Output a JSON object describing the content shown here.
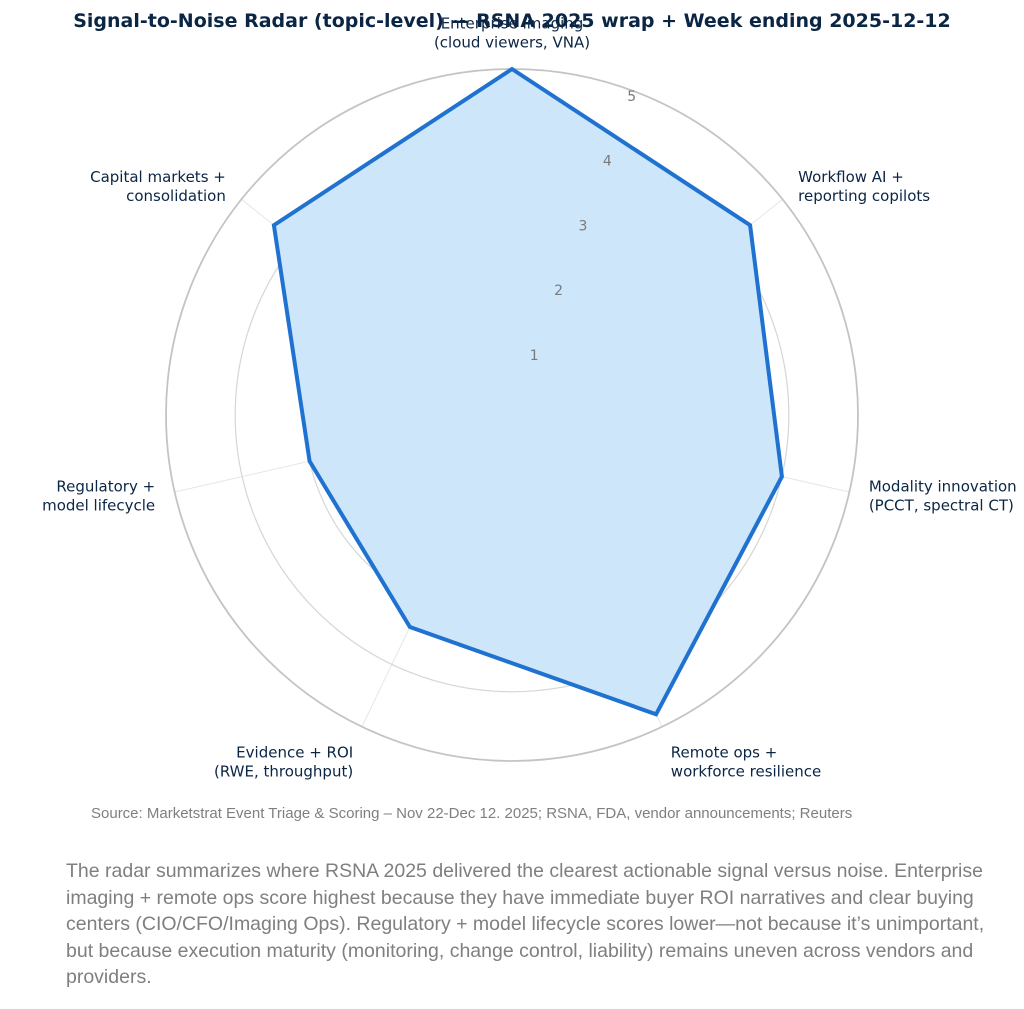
{
  "chart_data": {
    "type": "radar",
    "title": "Signal-to-Noise Radar (topic-level) — RSNA 2025 wrap + Week ending 2025-12-12",
    "axes": [
      {
        "label_lines": [
          "Enterprise imaging",
          "(cloud viewers, VNA)"
        ],
        "value": 5.0
      },
      {
        "label_lines": [
          "Workflow AI +",
          "reporting copilots"
        ],
        "value": 4.4
      },
      {
        "label_lines": [
          "Modality innovation",
          "(PCCT, spectral CT)"
        ],
        "value": 4.0
      },
      {
        "label_lines": [
          "Remote ops +",
          "workforce resilience"
        ],
        "value": 4.8
      },
      {
        "label_lines": [
          "Evidence + ROI",
          "(RWE, throughput)"
        ],
        "value": 3.4
      },
      {
        "label_lines": [
          "Regulatory +",
          "model lifecycle"
        ],
        "value": 3.0
      },
      {
        "label_lines": [
          "Capital markets +",
          "consolidation"
        ],
        "value": 4.4
      }
    ],
    "rlim": [
      0,
      5
    ],
    "radial_ticks": [
      "1",
      "2",
      "3",
      "4",
      "5"
    ],
    "grid": true,
    "colors": {
      "line": "#1f72d0",
      "fill": "#cde6fa",
      "grid": "#cccccc"
    }
  },
  "source": "Source: Marketstrat Event Triage & Scoring – Nov 22-Dec 12. 2025; RSNA, FDA, vendor announcements; Reuters",
  "summary": "The radar summarizes where RSNA 2025 delivered the clearest actionable signal versus noise. Enterprise imaging + remote ops score highest because they have immediate buyer ROI narratives and clear buying centers (CIO/CFO/Imaging Ops). Regulatory + model lifecycle scores lower—not because it’s unimportant, but because execution maturity (monitoring, change control, liability) remains uneven across vendors and providers."
}
